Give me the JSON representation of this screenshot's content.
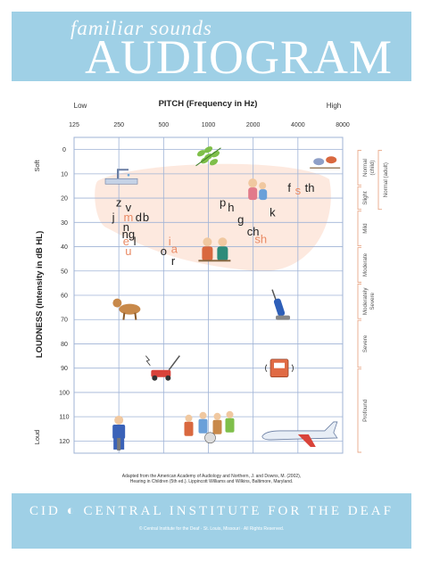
{
  "header": {
    "subtitle": "familiar sounds",
    "title": "AUDIOGRAM"
  },
  "chart_data": {
    "type": "scatter",
    "title": "AUDIOGRAM",
    "subtitle": "familiar sounds",
    "xlabel": "PITCH (Frequency in Hz)",
    "x_low_label": "Low",
    "x_high_label": "High",
    "x_scale": "log2",
    "x_ticks": [
      125,
      250,
      500,
      1000,
      2000,
      4000,
      8000
    ],
    "xlim": [
      125,
      8000
    ],
    "ylabel": "LOUDNESS (Intensity in dB HL)",
    "y_soft_label": "Soft",
    "y_loud_label": "Loud",
    "y_ticks": [
      0,
      10,
      20,
      30,
      40,
      50,
      60,
      70,
      80,
      90,
      100,
      110,
      120
    ],
    "ylim": [
      -5,
      125
    ],
    "y_inverted": true,
    "grid": true,
    "speech_banana": {
      "color": "#fde7dc",
      "range_hz": [
        180,
        6500
      ],
      "range_db": [
        10,
        50
      ]
    },
    "severity": [
      {
        "label": "Normal (child)",
        "range": [
          0,
          15
        ]
      },
      {
        "label": "Normal (adult)",
        "range": [
          0,
          25
        ]
      },
      {
        "label": "Slight",
        "range": [
          15,
          25
        ]
      },
      {
        "label": "Mild",
        "range": [
          25,
          40
        ]
      },
      {
        "label": "Moderate",
        "range": [
          40,
          55
        ]
      },
      {
        "label": "Moderately Severe",
        "range": [
          55,
          70
        ]
      },
      {
        "label": "Severe",
        "range": [
          70,
          90
        ]
      },
      {
        "label": "Profound",
        "range": [
          90,
          125
        ]
      }
    ],
    "phonemes": [
      {
        "text": "z",
        "x": 250,
        "y": 22,
        "color": "#222222"
      },
      {
        "text": "v",
        "x": 290,
        "y": 24,
        "color": "#222222"
      },
      {
        "text": "j",
        "x": 230,
        "y": 28,
        "color": "#222222"
      },
      {
        "text": "m",
        "x": 290,
        "y": 28,
        "color": "#e98a64"
      },
      {
        "text": "d",
        "x": 340,
        "y": 28,
        "color": "#222222"
      },
      {
        "text": "b",
        "x": 380,
        "y": 28,
        "color": "#222222"
      },
      {
        "text": "n",
        "x": 280,
        "y": 32,
        "color": "#222222"
      },
      {
        "text": "ng",
        "x": 290,
        "y": 35,
        "color": "#222222"
      },
      {
        "text": "e",
        "x": 280,
        "y": 38,
        "color": "#e98a64"
      },
      {
        "text": "l",
        "x": 320,
        "y": 38,
        "color": "#222222"
      },
      {
        "text": "u",
        "x": 290,
        "y": 42,
        "color": "#e98a64"
      },
      {
        "text": "i",
        "x": 550,
        "y": 38,
        "color": "#e98a64"
      },
      {
        "text": "o",
        "x": 500,
        "y": 42,
        "color": "#222222"
      },
      {
        "text": "a",
        "x": 590,
        "y": 41,
        "color": "#e98a64"
      },
      {
        "text": "r",
        "x": 580,
        "y": 46,
        "color": "#222222"
      },
      {
        "text": "p",
        "x": 1250,
        "y": 22,
        "color": "#222222"
      },
      {
        "text": "h",
        "x": 1420,
        "y": 24,
        "color": "#222222"
      },
      {
        "text": "g",
        "x": 1650,
        "y": 29,
        "color": "#222222"
      },
      {
        "text": "ch",
        "x": 2000,
        "y": 34,
        "color": "#222222"
      },
      {
        "text": "sh",
        "x": 2250,
        "y": 37,
        "color": "#e98a64"
      },
      {
        "text": "k",
        "x": 2700,
        "y": 26,
        "color": "#222222"
      },
      {
        "text": "f",
        "x": 3500,
        "y": 16,
        "color": "#222222"
      },
      {
        "text": "s",
        "x": 4000,
        "y": 17,
        "color": "#e98a64"
      },
      {
        "text": "th",
        "x": 4800,
        "y": 16,
        "color": "#222222"
      }
    ],
    "sounds": [
      {
        "name": "leaves-rustling",
        "x": 1000,
        "y": 3
      },
      {
        "name": "birds-chirping",
        "x": 6000,
        "y": 5
      },
      {
        "name": "water-dripping",
        "x": 260,
        "y": 12
      },
      {
        "name": "child-whispering",
        "x": 2100,
        "y": 16
      },
      {
        "name": "people-talking",
        "x": 1100,
        "y": 41
      },
      {
        "name": "dog-barking",
        "x": 280,
        "y": 65
      },
      {
        "name": "vacuum-cleaner",
        "x": 3000,
        "y": 65
      },
      {
        "name": "lawnmower",
        "x": 500,
        "y": 90
      },
      {
        "name": "telephone-ringing",
        "x": 3000,
        "y": 90
      },
      {
        "name": "jackhammer",
        "x": 250,
        "y": 118
      },
      {
        "name": "rock-band",
        "x": 1000,
        "y": 115
      },
      {
        "name": "airplane",
        "x": 4000,
        "y": 118
      }
    ]
  },
  "credit": {
    "line1": "Adapted from the American Academy of Audiology and Northern, J. and Downs, M. (2002),",
    "line2": "Hearing in Children (5th ed.). Lippincott Williams and Wilkins, Baltimore, Maryland."
  },
  "footer": {
    "org": "CID ◐ CENTRAL INSTITUTE FOR THE DEAF",
    "copyright": "© Central Institute for the Deaf · St. Louis, Missouri · All Rights Reserved."
  },
  "colors": {
    "banner": "#9fd0e6",
    "grid_line": "#9fb3d6",
    "banana": "#fde7dc",
    "accent_phoneme": "#e98a64",
    "bracket": "#e9a98a"
  }
}
